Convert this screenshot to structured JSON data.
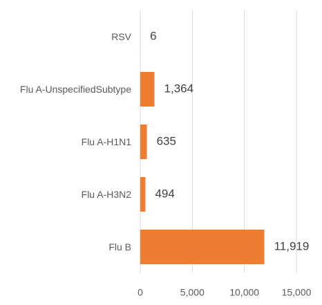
{
  "chart_data": {
    "type": "bar",
    "orientation": "horizontal",
    "categories": [
      "RSV",
      "Flu A-UnspecifiedSubtype",
      "Flu A-H1N1",
      "Flu A-H3N2",
      "Flu B"
    ],
    "values": [
      6,
      1364,
      635,
      494,
      11919
    ],
    "value_labels": [
      "6",
      "1,364",
      "635",
      "494",
      "11,919"
    ],
    "color": "#ed7d31",
    "xlim": [
      0,
      15000
    ],
    "xticks": [
      0,
      {
        "value": 5000,
        "label": "5,000"
      },
      {
        "value": 10000,
        "label": "10,000"
      },
      {
        "value": 15000,
        "label": "15,000"
      }
    ],
    "grid": true
  }
}
